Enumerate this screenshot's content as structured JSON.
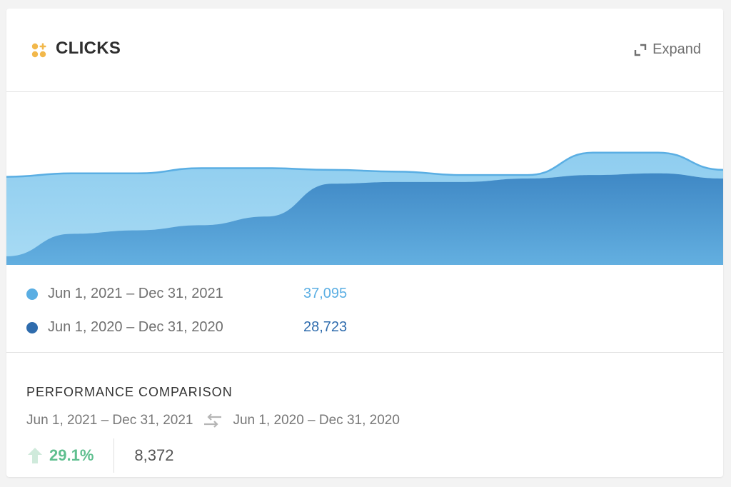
{
  "header": {
    "title": "CLICKS",
    "expand_label": "Expand",
    "icon": "clicks-dots-icon",
    "icon_color": "#f2b84b"
  },
  "legend": [
    {
      "range": "Jun 1, 2021 – Dec 31, 2021",
      "value": "37,095",
      "color": "#5aaee3"
    },
    {
      "range": "Jun 1, 2020 – Dec 31, 2020",
      "value": "28,723",
      "color": "#2f6cad"
    }
  ],
  "performance": {
    "title": "PERFORMANCE COMPARISON",
    "current_range": "Jun 1, 2021 – Dec 31, 2021",
    "previous_range": "Jun 1, 2020 – Dec 31, 2020",
    "change_percent": "29.1%",
    "change_value": "8,372",
    "up_color": "#5fbf8f"
  },
  "chart_data": {
    "type": "area",
    "series": [
      {
        "name": "Jun 1, 2021 – Dec 31, 2021",
        "color": "#8fcdef",
        "values": [
          0.51,
          0.53,
          0.53,
          0.56,
          0.56,
          0.55,
          0.54,
          0.52,
          0.52,
          0.65,
          0.65,
          0.55
        ]
      },
      {
        "name": "Jun 1, 2020 – Dec 31, 2020",
        "color": "#4a8fca",
        "values": [
          0.05,
          0.18,
          0.2,
          0.23,
          0.28,
          0.47,
          0.48,
          0.48,
          0.5,
          0.52,
          0.53,
          0.5
        ]
      }
    ],
    "ylim": [
      0,
      1
    ],
    "grid": false
  }
}
